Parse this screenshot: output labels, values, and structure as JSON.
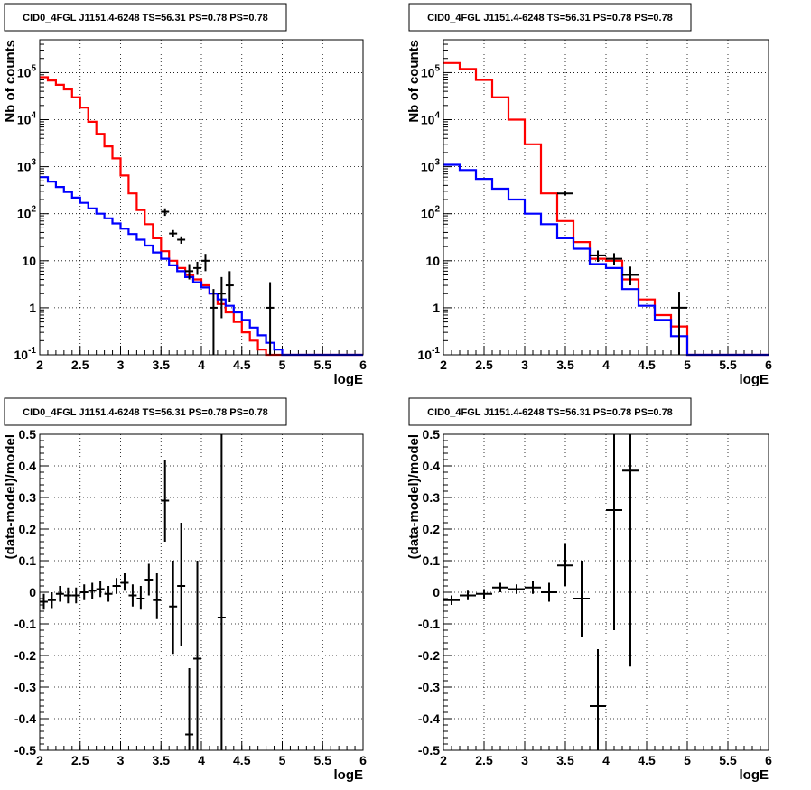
{
  "chart_data": [
    {
      "type": "line",
      "title": "CID0_4FGL J1151.4-6248 TS=56.31 PS=0.78 PS=0.78",
      "xlabel": "logE",
      "ylabel": "Nb of counts",
      "xlim": [
        2,
        6
      ],
      "ylim": [
        0.1,
        500000
      ],
      "yscale": "log",
      "grid": true,
      "x_ticks": [
        "2",
        "2.5",
        "3",
        "3.5",
        "4",
        "4.5",
        "5",
        "5.5",
        "6"
      ],
      "y_ticks": [
        "10^-1",
        "1",
        "10",
        "10^2",
        "10^3",
        "10^4",
        "10^5"
      ],
      "bin_edges": [
        2.0,
        2.1,
        2.2,
        2.3,
        2.4,
        2.5,
        2.6,
        2.7,
        2.8,
        2.9,
        3.0,
        3.1,
        3.2,
        3.3,
        3.4,
        3.5,
        3.6,
        3.7,
        3.8,
        3.9,
        4.0,
        4.1,
        4.2,
        4.3,
        4.4,
        4.5,
        4.6,
        4.7,
        4.8,
        4.9,
        5.0,
        5.1,
        5.2,
        5.3,
        5.4,
        5.5,
        5.6,
        5.7,
        5.8,
        5.9,
        6.0
      ],
      "series": [
        {
          "color": "#ff0000",
          "values": [
            80000,
            68000,
            55000,
            44000,
            30000,
            18000,
            9000,
            5000,
            2700,
            1500,
            650,
            270,
            120,
            60,
            30,
            16,
            10,
            7,
            5,
            4,
            3,
            2,
            1.2,
            0.8,
            0.5,
            0.3,
            0.2,
            0.13,
            0.1,
            0.1,
            0.1,
            0.1,
            0.1,
            0.1,
            0.1,
            0.1,
            0.1,
            0.1,
            0.1,
            0.1
          ]
        },
        {
          "color": "#0000ff",
          "values": [
            600,
            480,
            370,
            290,
            220,
            170,
            130,
            100,
            80,
            62,
            48,
            37,
            28,
            21,
            15,
            11,
            8,
            6,
            4.5,
            3.5,
            2.7,
            2,
            1.5,
            1.1,
            0.8,
            0.55,
            0.38,
            0.26,
            0.18,
            0.13,
            0.1,
            0.1,
            0.1,
            0.1,
            0.1,
            0.1,
            0.1,
            0.1,
            0.1,
            0.1
          ]
        }
      ],
      "points": [
        {
          "x": 3.55,
          "y": 110,
          "ylo": 90,
          "yhi": 130,
          "xerr": 0.05
        },
        {
          "x": 3.65,
          "y": 38,
          "ylo": 32,
          "yhi": 45,
          "xerr": 0.05
        },
        {
          "x": 3.75,
          "y": 28,
          "ylo": 23,
          "yhi": 33,
          "xerr": 0.05
        },
        {
          "x": 3.85,
          "y": 6,
          "ylo": 4,
          "yhi": 8.5,
          "xerr": 0.05
        },
        {
          "x": 3.95,
          "y": 7,
          "ylo": 5,
          "yhi": 9.5,
          "xerr": 0.05
        },
        {
          "x": 4.05,
          "y": 10,
          "ylo": 6,
          "yhi": 14,
          "xerr": 0.05
        },
        {
          "x": 4.15,
          "y": 1,
          "ylo": 0.1,
          "yhi": 2.5,
          "xerr": 0.05
        },
        {
          "x": 4.25,
          "y": 2,
          "ylo": 0.6,
          "yhi": 4.5,
          "xerr": 0.05
        },
        {
          "x": 4.35,
          "y": 3,
          "ylo": 1.3,
          "yhi": 6,
          "xerr": 0.05
        },
        {
          "x": 4.85,
          "y": 1,
          "ylo": 0.1,
          "yhi": 3.5,
          "xerr": 0.05
        }
      ]
    },
    {
      "type": "line",
      "title": "CID0_4FGL J1151.4-6248 TS=56.31 PS=0.78 PS=0.78",
      "xlabel": "logE",
      "ylabel": "Nb of counts",
      "xlim": [
        2,
        6
      ],
      "ylim": [
        0.1,
        500000
      ],
      "yscale": "log",
      "grid": true,
      "x_ticks": [
        "2",
        "2.5",
        "3",
        "3.5",
        "4",
        "4.5",
        "5",
        "5.5",
        "6"
      ],
      "y_ticks": [
        "10^-1",
        "1",
        "10",
        "10^2",
        "10^3",
        "10^4",
        "10^5"
      ],
      "bin_edges": [
        2.0,
        2.2,
        2.4,
        2.6,
        2.8,
        3.0,
        3.2,
        3.4,
        3.6,
        3.8,
        4.0,
        4.2,
        4.4,
        4.6,
        4.8,
        5.0,
        5.2,
        5.4,
        5.6,
        5.8,
        6.0
      ],
      "series": [
        {
          "color": "#ff0000",
          "values": [
            160000,
            120000,
            70000,
            30000,
            10000,
            3000,
            270,
            70,
            25,
            11,
            10,
            4,
            1.5,
            0.7,
            0.4,
            0.1,
            0.1,
            0.1,
            0.1,
            0.1
          ]
        },
        {
          "color": "#0000ff",
          "values": [
            1100,
            850,
            550,
            340,
            200,
            100,
            60,
            30,
            18,
            8.5,
            7,
            2.5,
            1.1,
            0.55,
            0.25,
            0.1,
            0.1,
            0.1,
            0.1,
            0.1
          ]
        }
      ],
      "points": [
        {
          "x": 3.5,
          "y": 270,
          "ylo": 245,
          "yhi": 295,
          "xerr": 0.1
        },
        {
          "x": 3.9,
          "y": 13,
          "ylo": 9.5,
          "yhi": 16.5,
          "xerr": 0.1
        },
        {
          "x": 4.1,
          "y": 11,
          "ylo": 8,
          "yhi": 14.5,
          "xerr": 0.1
        },
        {
          "x": 4.3,
          "y": 5,
          "ylo": 3,
          "yhi": 7.5,
          "xerr": 0.1
        },
        {
          "x": 4.9,
          "y": 1,
          "ylo": 0.1,
          "yhi": 2.2,
          "xerr": 0.1
        }
      ]
    },
    {
      "type": "scatter",
      "title": "CID0_4FGL J1151.4-6248 TS=56.31 PS=0.78 PS=0.78",
      "xlabel": "logE",
      "ylabel": "(data-model)/model",
      "xlim": [
        2,
        6
      ],
      "ylim": [
        -0.5,
        0.5
      ],
      "grid": true,
      "x_ticks": [
        "2",
        "2.5",
        "3",
        "3.5",
        "4",
        "4.5",
        "5",
        "5.5",
        "6"
      ],
      "y_ticks": [
        "-0.5",
        "-0.4",
        "-0.3",
        "-0.2",
        "-0.1",
        "0",
        "0.1",
        "0.2",
        "0.3",
        "0.4",
        "0.5"
      ],
      "points": [
        {
          "x": 2.05,
          "y": -0.03,
          "ylo": -0.055,
          "yhi": -0.005,
          "xerr": 0.05
        },
        {
          "x": 2.15,
          "y": -0.025,
          "ylo": -0.05,
          "yhi": 0.0,
          "xerr": 0.05
        },
        {
          "x": 2.25,
          "y": -0.005,
          "ylo": -0.03,
          "yhi": 0.02,
          "xerr": 0.05
        },
        {
          "x": 2.35,
          "y": -0.01,
          "ylo": -0.035,
          "yhi": 0.015,
          "xerr": 0.05
        },
        {
          "x": 2.45,
          "y": -0.01,
          "ylo": -0.035,
          "yhi": 0.015,
          "xerr": 0.05
        },
        {
          "x": 2.55,
          "y": 0.0,
          "ylo": -0.025,
          "yhi": 0.025,
          "xerr": 0.05
        },
        {
          "x": 2.65,
          "y": 0.005,
          "ylo": -0.02,
          "yhi": 0.03,
          "xerr": 0.05
        },
        {
          "x": 2.75,
          "y": 0.01,
          "ylo": -0.015,
          "yhi": 0.035,
          "xerr": 0.05
        },
        {
          "x": 2.85,
          "y": -0.005,
          "ylo": -0.03,
          "yhi": 0.02,
          "xerr": 0.05
        },
        {
          "x": 2.95,
          "y": 0.02,
          "ylo": -0.005,
          "yhi": 0.045,
          "xerr": 0.05
        },
        {
          "x": 3.05,
          "y": 0.03,
          "ylo": 0.005,
          "yhi": 0.06,
          "xerr": 0.05
        },
        {
          "x": 3.15,
          "y": -0.01,
          "ylo": -0.045,
          "yhi": 0.025,
          "xerr": 0.05
        },
        {
          "x": 3.25,
          "y": -0.02,
          "ylo": -0.055,
          "yhi": 0.02,
          "xerr": 0.05
        },
        {
          "x": 3.35,
          "y": 0.04,
          "ylo": -0.01,
          "yhi": 0.09,
          "xerr": 0.05
        },
        {
          "x": 3.45,
          "y": -0.025,
          "ylo": -0.085,
          "yhi": 0.06,
          "xerr": 0.05
        },
        {
          "x": 3.55,
          "y": 0.29,
          "ylo": 0.16,
          "yhi": 0.42,
          "xerr": 0.05
        },
        {
          "x": 3.65,
          "y": -0.045,
          "ylo": -0.195,
          "yhi": 0.1,
          "xerr": 0.05
        },
        {
          "x": 3.75,
          "y": 0.02,
          "ylo": -0.17,
          "yhi": 0.22,
          "xerr": 0.05
        },
        {
          "x": 3.85,
          "y": -0.45,
          "ylo": -0.5,
          "yhi": -0.24,
          "xerr": 0.05
        },
        {
          "x": 3.95,
          "y": -0.21,
          "ylo": -0.5,
          "yhi": 0.1,
          "xerr": 0.05
        },
        {
          "x": 4.25,
          "y": -0.08,
          "ylo": -0.5,
          "yhi": 0.5,
          "xerr": 0.05
        }
      ]
    },
    {
      "type": "scatter",
      "title": "CID0_4FGL J1151.4-6248 TS=56.31 PS=0.78 PS=0.78",
      "xlabel": "logE",
      "ylabel": "(data-model)/model",
      "xlim": [
        2,
        6
      ],
      "ylim": [
        -0.5,
        0.5
      ],
      "grid": true,
      "x_ticks": [
        "2",
        "2.5",
        "3",
        "3.5",
        "4",
        "4.5",
        "5",
        "5.5",
        "6"
      ],
      "y_ticks": [
        "-0.5",
        "-0.4",
        "-0.3",
        "-0.2",
        "-0.1",
        "0",
        "0.1",
        "0.2",
        "0.3",
        "0.4",
        "0.5"
      ],
      "points": [
        {
          "x": 2.1,
          "y": -0.025,
          "ylo": -0.04,
          "yhi": -0.01,
          "xerr": 0.1
        },
        {
          "x": 2.3,
          "y": -0.01,
          "ylo": -0.025,
          "yhi": 0.005,
          "xerr": 0.1
        },
        {
          "x": 2.5,
          "y": -0.005,
          "ylo": -0.02,
          "yhi": 0.01,
          "xerr": 0.1
        },
        {
          "x": 2.7,
          "y": 0.015,
          "ylo": 0.0,
          "yhi": 0.03,
          "xerr": 0.1
        },
        {
          "x": 2.9,
          "y": 0.01,
          "ylo": -0.005,
          "yhi": 0.025,
          "xerr": 0.1
        },
        {
          "x": 3.1,
          "y": 0.015,
          "ylo": -0.005,
          "yhi": 0.035,
          "xerr": 0.1
        },
        {
          "x": 3.3,
          "y": 0.0,
          "ylo": -0.03,
          "yhi": 0.03,
          "xerr": 0.1
        },
        {
          "x": 3.5,
          "y": 0.085,
          "ylo": 0.02,
          "yhi": 0.155,
          "xerr": 0.1
        },
        {
          "x": 3.7,
          "y": -0.02,
          "ylo": -0.14,
          "yhi": 0.1,
          "xerr": 0.1
        },
        {
          "x": 3.9,
          "y": -0.36,
          "ylo": -0.5,
          "yhi": -0.18,
          "xerr": 0.1
        },
        {
          "x": 4.1,
          "y": 0.26,
          "ylo": -0.12,
          "yhi": 0.5,
          "xerr": 0.1
        },
        {
          "x": 4.3,
          "y": 0.385,
          "ylo": -0.235,
          "yhi": 0.5,
          "xerr": 0.1
        }
      ]
    }
  ]
}
